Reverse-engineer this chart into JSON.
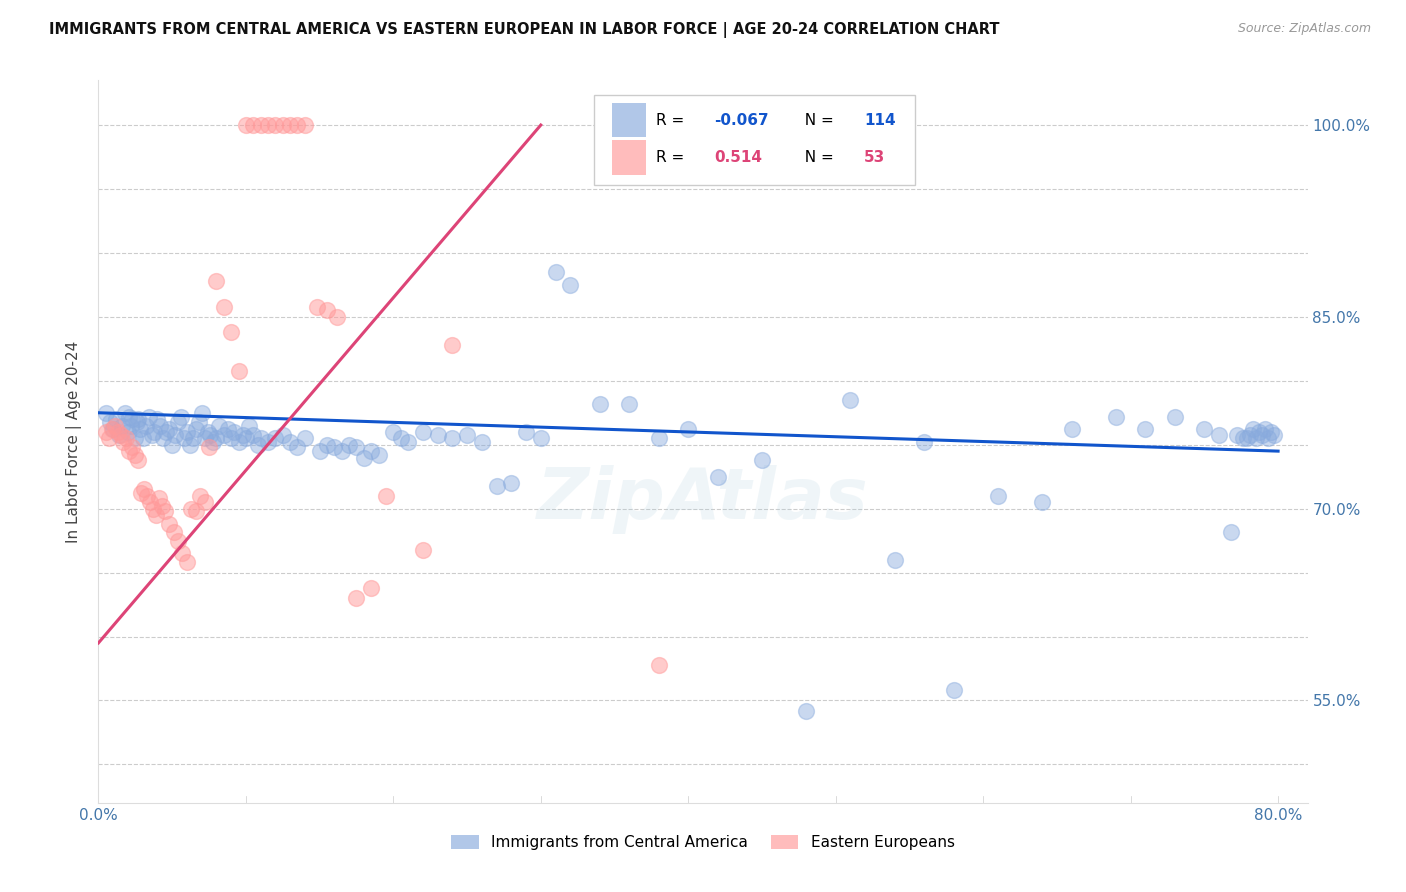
{
  "title": "IMMIGRANTS FROM CENTRAL AMERICA VS EASTERN EUROPEAN IN LABOR FORCE | AGE 20-24 CORRELATION CHART",
  "source": "Source: ZipAtlas.com",
  "ylabel": "In Labor Force | Age 20-24",
  "xlim": [
    0.0,
    0.82
  ],
  "ylim": [
    0.47,
    1.035
  ],
  "xticks": [
    0.0,
    0.1,
    0.2,
    0.3,
    0.4,
    0.5,
    0.6,
    0.7,
    0.8
  ],
  "xticklabels": [
    "0.0%",
    "",
    "",
    "",
    "",
    "",
    "",
    "",
    "80.0%"
  ],
  "yticks": [
    0.5,
    0.55,
    0.6,
    0.65,
    0.7,
    0.75,
    0.8,
    0.85,
    0.9,
    0.95,
    1.0
  ],
  "ytick_right_labels": [
    "",
    "55.0%",
    "",
    "",
    "70.0%",
    "",
    "",
    "85.0%",
    "",
    "",
    "100.0%"
  ],
  "blue_color": "#88AADD",
  "pink_color": "#FF9999",
  "blue_line_color": "#1155CC",
  "pink_line_color": "#DD4477",
  "blue_R": -0.067,
  "blue_N": 114,
  "pink_R": 0.514,
  "pink_N": 53,
  "watermark": "ZipAtlas",
  "legend_blue_label": "Immigrants from Central America",
  "legend_pink_label": "Eastern Europeans",
  "blue_x": [
    0.005,
    0.008,
    0.01,
    0.012,
    0.014,
    0.016,
    0.018,
    0.02,
    0.021,
    0.022,
    0.023,
    0.025,
    0.026,
    0.027,
    0.028,
    0.03,
    0.032,
    0.034,
    0.036,
    0.038,
    0.04,
    0.042,
    0.044,
    0.046,
    0.048,
    0.05,
    0.052,
    0.054,
    0.056,
    0.058,
    0.06,
    0.062,
    0.064,
    0.066,
    0.068,
    0.07,
    0.072,
    0.074,
    0.076,
    0.078,
    0.08,
    0.082,
    0.085,
    0.088,
    0.09,
    0.092,
    0.095,
    0.098,
    0.1,
    0.102,
    0.105,
    0.108,
    0.11,
    0.115,
    0.12,
    0.125,
    0.13,
    0.135,
    0.14,
    0.15,
    0.155,
    0.16,
    0.165,
    0.17,
    0.175,
    0.18,
    0.185,
    0.19,
    0.2,
    0.205,
    0.21,
    0.22,
    0.23,
    0.24,
    0.25,
    0.26,
    0.27,
    0.28,
    0.29,
    0.3,
    0.31,
    0.32,
    0.34,
    0.36,
    0.38,
    0.4,
    0.42,
    0.45,
    0.48,
    0.51,
    0.54,
    0.56,
    0.58,
    0.61,
    0.64,
    0.66,
    0.69,
    0.71,
    0.73,
    0.75,
    0.76,
    0.768,
    0.772,
    0.776,
    0.779,
    0.781,
    0.783,
    0.785,
    0.787,
    0.789,
    0.791,
    0.793,
    0.795,
    0.797
  ],
  "blue_y": [
    0.775,
    0.768,
    0.762,
    0.77,
    0.758,
    0.765,
    0.775,
    0.76,
    0.772,
    0.765,
    0.77,
    0.755,
    0.768,
    0.77,
    0.762,
    0.755,
    0.765,
    0.772,
    0.758,
    0.76,
    0.77,
    0.765,
    0.755,
    0.76,
    0.762,
    0.75,
    0.758,
    0.768,
    0.772,
    0.755,
    0.76,
    0.75,
    0.755,
    0.762,
    0.768,
    0.775,
    0.755,
    0.76,
    0.758,
    0.752,
    0.755,
    0.765,
    0.758,
    0.762,
    0.755,
    0.76,
    0.752,
    0.758,
    0.755,
    0.765,
    0.758,
    0.75,
    0.755,
    0.752,
    0.755,
    0.758,
    0.752,
    0.748,
    0.755,
    0.745,
    0.75,
    0.748,
    0.745,
    0.75,
    0.748,
    0.74,
    0.745,
    0.742,
    0.76,
    0.755,
    0.752,
    0.76,
    0.758,
    0.755,
    0.758,
    0.752,
    0.718,
    0.72,
    0.76,
    0.755,
    0.885,
    0.875,
    0.782,
    0.782,
    0.755,
    0.762,
    0.725,
    0.738,
    0.542,
    0.785,
    0.66,
    0.752,
    0.558,
    0.71,
    0.705,
    0.762,
    0.772,
    0.762,
    0.772,
    0.762,
    0.758,
    0.682,
    0.758,
    0.755,
    0.755,
    0.758,
    0.762,
    0.755,
    0.76,
    0.758,
    0.762,
    0.755,
    0.76,
    0.758
  ],
  "pink_x": [
    0.005,
    0.007,
    0.009,
    0.011,
    0.013,
    0.015,
    0.017,
    0.019,
    0.021,
    0.023,
    0.025,
    0.027,
    0.029,
    0.031,
    0.033,
    0.035,
    0.037,
    0.039,
    0.041,
    0.043,
    0.045,
    0.048,
    0.051,
    0.054,
    0.057,
    0.06,
    0.063,
    0.066,
    0.069,
    0.072,
    0.075,
    0.08,
    0.085,
    0.09,
    0.095,
    0.1,
    0.105,
    0.11,
    0.115,
    0.12,
    0.125,
    0.13,
    0.135,
    0.14,
    0.148,
    0.155,
    0.162,
    0.175,
    0.185,
    0.195,
    0.22,
    0.24,
    0.38
  ],
  "pink_y": [
    0.76,
    0.755,
    0.762,
    0.765,
    0.76,
    0.758,
    0.752,
    0.755,
    0.745,
    0.748,
    0.742,
    0.738,
    0.712,
    0.715,
    0.71,
    0.705,
    0.7,
    0.695,
    0.708,
    0.702,
    0.698,
    0.688,
    0.682,
    0.675,
    0.665,
    0.658,
    0.7,
    0.698,
    0.71,
    0.705,
    0.748,
    0.878,
    0.858,
    0.838,
    0.808,
    1.0,
    1.0,
    1.0,
    1.0,
    1.0,
    1.0,
    1.0,
    1.0,
    1.0,
    0.858,
    0.855,
    0.85,
    0.63,
    0.638,
    0.71,
    0.668,
    0.828,
    0.578
  ],
  "blue_trend_x0": 0.0,
  "blue_trend_x1": 0.8,
  "blue_trend_y0": 0.775,
  "blue_trend_y1": 0.745,
  "pink_trend_x0": 0.0,
  "pink_trend_x1": 0.3,
  "pink_trend_y0": 0.595,
  "pink_trend_y1": 1.0
}
